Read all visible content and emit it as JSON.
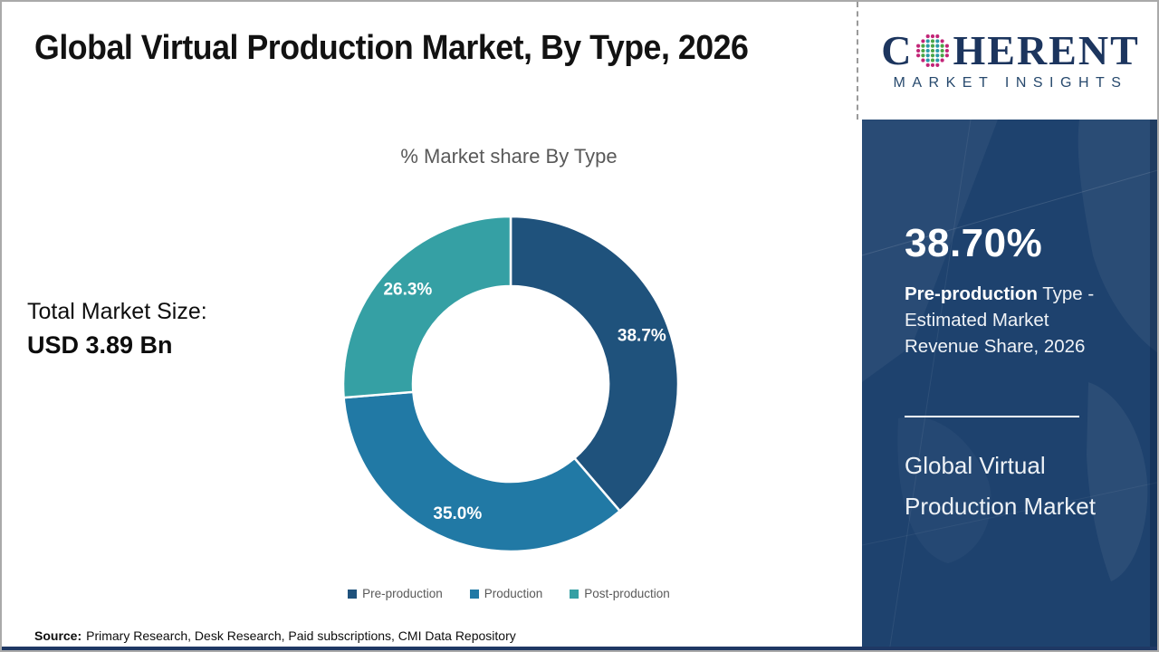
{
  "page": {
    "title": "Global Virtual Production Market, By Type, 2026"
  },
  "logo": {
    "prefix": "C",
    "suffix": "HERENT",
    "subtitle": "MARKET INSIGHTS",
    "colors": {
      "text_navy": "#1c355e",
      "subtitle_blue": "#27496d",
      "dot_green": "#4aa546",
      "dot_teal": "#2a9aa8",
      "dot_magenta": "#c22577"
    }
  },
  "left_panel": {
    "total_label": "Total Market Size:",
    "total_value": "USD 3.89 Bn"
  },
  "chart_data": {
    "type": "pie",
    "donut": true,
    "title": "% Market share By Type",
    "categories": [
      "Pre-production",
      "Production",
      "Post-production"
    ],
    "values": [
      38.7,
      35.0,
      26.3
    ],
    "slice_labels": [
      "38.7%",
      "35.0%",
      "26.3%"
    ],
    "colors": [
      "#1f527c",
      "#2179a5",
      "#35a0a4"
    ],
    "start_angle_deg": 0,
    "direction": "clockwise",
    "legend_position": "bottom",
    "outer_radius": 185,
    "inner_radius": 108
  },
  "sidebar": {
    "highlight_value": "38.70%",
    "highlight_bold": "Pre-production",
    "highlight_rest": " Type - Estimated Market Revenue Share, 2026",
    "market_title": "Global Virtual Production Market",
    "colors": {
      "background": "#1e426e",
      "text": "#ffffff"
    }
  },
  "source": {
    "label": "Source:",
    "text": "Primary Research, Desk Research, Paid subscriptions, CMI Data Repository"
  }
}
